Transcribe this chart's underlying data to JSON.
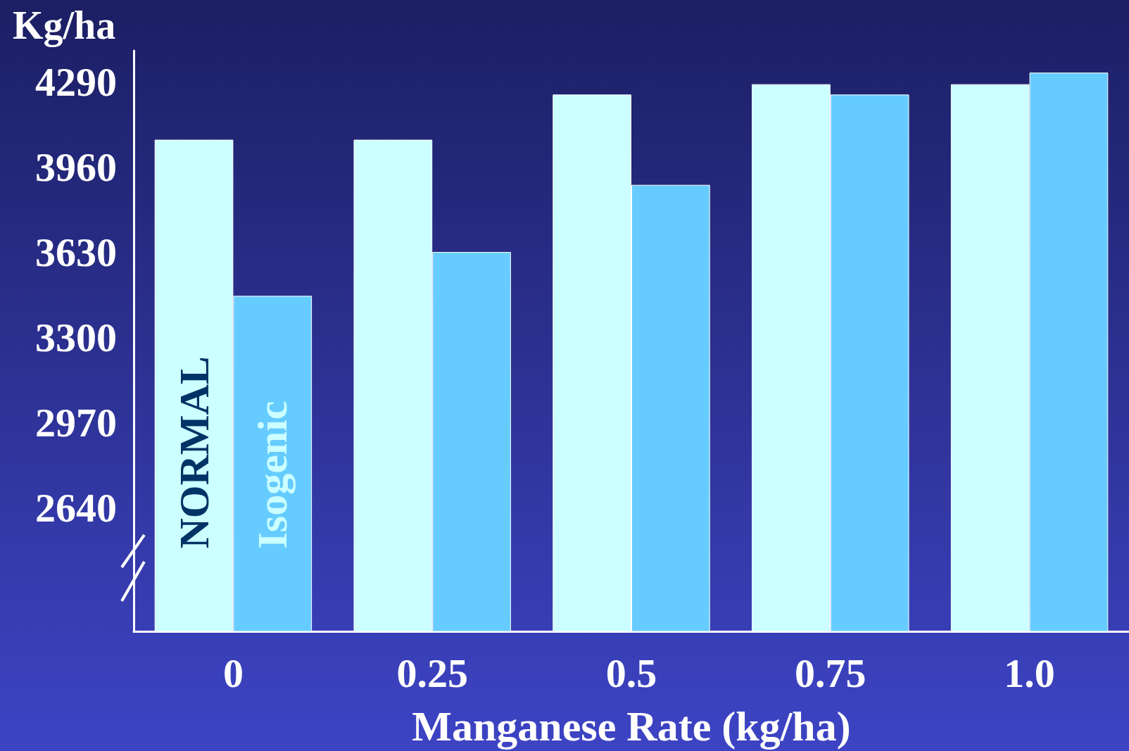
{
  "chart_data": {
    "type": "bar",
    "ylabel": "Kg/ha",
    "xlabel": "Manganese Rate (kg/ha)",
    "categories": [
      "0",
      "0.25",
      "0.5",
      "0.75",
      "1.0"
    ],
    "series": [
      {
        "name": "NORMAL",
        "color": "#ccffff",
        "values": [
          4065,
          4065,
          4240,
          4280,
          4280
        ]
      },
      {
        "name": "Isogenic",
        "color": "#66ccff",
        "values": [
          3460,
          3630,
          3890,
          4240,
          4325
        ]
      }
    ],
    "ylim": [
      2160,
      4410
    ],
    "yticks": [
      2640,
      2970,
      3300,
      3630,
      3960,
      4290
    ],
    "grid": false,
    "legend": false
  }
}
